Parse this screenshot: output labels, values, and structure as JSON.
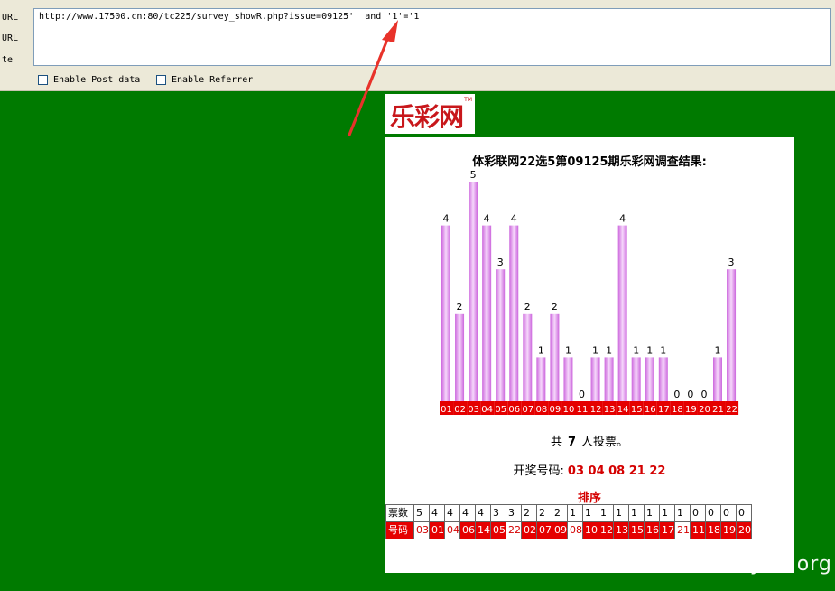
{
  "toolbar": {
    "labels": [
      "URL",
      "URL",
      "te"
    ],
    "url_value": "http://www.17500.cn:80/tc225/survey_showR.php?issue=09125'  and '1'='1",
    "post_label": "Enable Post data",
    "referrer_label": "Enable Referrer"
  },
  "logo": {
    "text": "乐彩网",
    "tm": "TM"
  },
  "panel": {
    "title": "体彩联网22选5第09125期乐彩网调查结果:",
    "voters_prefix": "共",
    "voters_count": "7",
    "voters_suffix": "人投票。",
    "draw_label": "开奖号码:",
    "draw_numbers": "03  04  08  21  22",
    "sort_title": "排序"
  },
  "chart_data": {
    "type": "bar",
    "title": "体彩联网22选5第09125期乐彩网调查结果:",
    "categories": [
      "01",
      "02",
      "03",
      "04",
      "05",
      "06",
      "07",
      "08",
      "09",
      "10",
      "11",
      "12",
      "13",
      "14",
      "15",
      "16",
      "17",
      "18",
      "19",
      "20",
      "21",
      "22"
    ],
    "values": [
      4,
      2,
      5,
      4,
      3,
      4,
      2,
      1,
      2,
      1,
      0,
      1,
      1,
      4,
      1,
      1,
      1,
      0,
      0,
      0,
      1,
      3
    ],
    "ylim": [
      0,
      5
    ],
    "xlabel": "",
    "ylabel": "",
    "colors": {
      "bar": "#cc66dd",
      "bar_light": "#f6d8fb",
      "label_bg": "#e50000",
      "label_text": "#ffffff"
    }
  },
  "ranking": {
    "votes_label": "票数",
    "number_label": "号码",
    "votes": [
      "5",
      "4",
      "4",
      "4",
      "4",
      "3",
      "3",
      "2",
      "2",
      "2",
      "1",
      "1",
      "1",
      "1",
      "1",
      "1",
      "1",
      "1",
      "0",
      "0",
      "0",
      "0"
    ],
    "numbers": [
      "03",
      "01",
      "04",
      "06",
      "14",
      "05",
      "22",
      "02",
      "07",
      "09",
      "08",
      "10",
      "12",
      "13",
      "15",
      "16",
      "17",
      "21",
      "11",
      "18",
      "19",
      "20"
    ],
    "drawn": [
      "03",
      "04",
      "08",
      "21",
      "22"
    ]
  },
  "watermark": "www.wooyun.org",
  "colors": {
    "background": "#007a00",
    "arrow": "#e8322a"
  }
}
